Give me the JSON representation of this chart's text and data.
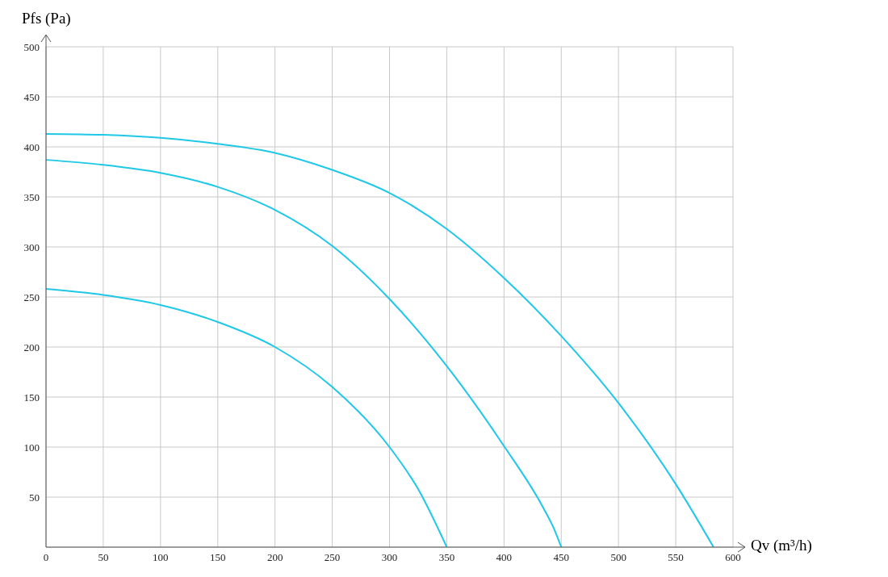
{
  "chart_data": {
    "type": "line",
    "xlabel": "Qv (m³/h)",
    "ylabel": "Pfs (Pa)",
    "series": [
      {
        "color": "#1ec8e6",
        "x": [
          0,
          50,
          100,
          150,
          200,
          250,
          300,
          350,
          400,
          450,
          500,
          550,
          583
        ],
        "values": [
          413,
          412,
          409,
          403,
          394,
          377,
          354,
          318,
          269,
          211,
          144,
          63,
          0
        ]
      },
      {
        "color": "#1ec8e6",
        "x": [
          0,
          50,
          100,
          150,
          200,
          250,
          300,
          350,
          400,
          433,
          443,
          450
        ],
        "values": [
          387,
          382,
          374,
          360,
          337,
          301,
          248,
          181,
          101,
          42,
          20,
          0
        ]
      },
      {
        "color": "#1ec8e6",
        "x": [
          0,
          50,
          100,
          150,
          200,
          250,
          300,
          325,
          350
        ],
        "values": [
          258,
          252,
          242,
          225,
          200,
          160,
          100,
          58,
          0
        ]
      }
    ],
    "xlim": [
      0,
      600
    ],
    "ylim": [
      0,
      500
    ],
    "xticks": [
      0,
      50,
      100,
      150,
      200,
      250,
      300,
      350,
      400,
      450,
      500,
      550,
      600
    ],
    "yticks": [
      50,
      100,
      150,
      200,
      250,
      300,
      350,
      400,
      450,
      500
    ],
    "grid": true,
    "marker": "none",
    "line_style": "solid"
  }
}
